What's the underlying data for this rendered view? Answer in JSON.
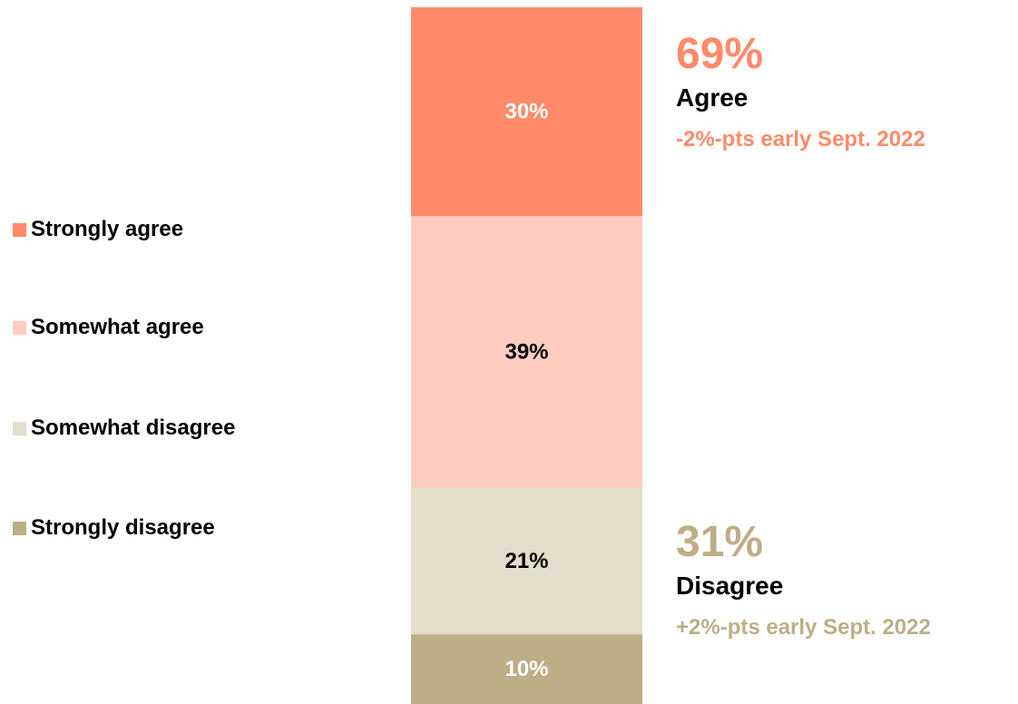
{
  "colors": {
    "strongly_agree": "#FF8A6A",
    "somewhat_agree": "#FFCCC0",
    "somewhat_disagree": "#E3DDCC",
    "strongly_disagree": "#BCAE87",
    "agree_accent": "#FF8A6A",
    "disagree_accent": "#BCAE87"
  },
  "chart_data": {
    "type": "bar",
    "stacked": true,
    "orientation": "vertical",
    "categories": [
      ""
    ],
    "series": [
      {
        "name": "Strongly agree",
        "values": [
          30
        ],
        "label": "30%",
        "color": "#FF8A6A",
        "label_color": "#ffffff"
      },
      {
        "name": "Somewhat agree",
        "values": [
          39
        ],
        "label": "39%",
        "color": "#FFCCC0",
        "label_color": "#000000"
      },
      {
        "name": "Somewhat disagree",
        "values": [
          21
        ],
        "label": "21%",
        "color": "#E3DDCC",
        "label_color": "#000000"
      },
      {
        "name": "Strongly disagree",
        "values": [
          10
        ],
        "label": "10%",
        "color": "#BCAE87",
        "label_color": "#ffffff"
      }
    ],
    "legend_position": "left",
    "grid": false,
    "ylim": [
      0,
      100
    ]
  },
  "legend": {
    "items": [
      {
        "label": "Strongly agree",
        "color": "#FF8A6A"
      },
      {
        "label": "Somewhat agree",
        "color": "#FFCCC0"
      },
      {
        "label": "Somewhat disagree",
        "color": "#E3DDCC"
      },
      {
        "label": "Strongly disagree",
        "color": "#BCAE87"
      }
    ]
  },
  "summary": {
    "agree": {
      "percent": "69%",
      "label": "Agree",
      "change": "-2%-pts early Sept. 2022"
    },
    "disagree": {
      "percent": "31%",
      "label": "Disagree",
      "change": "+2%-pts early Sept. 2022"
    }
  }
}
